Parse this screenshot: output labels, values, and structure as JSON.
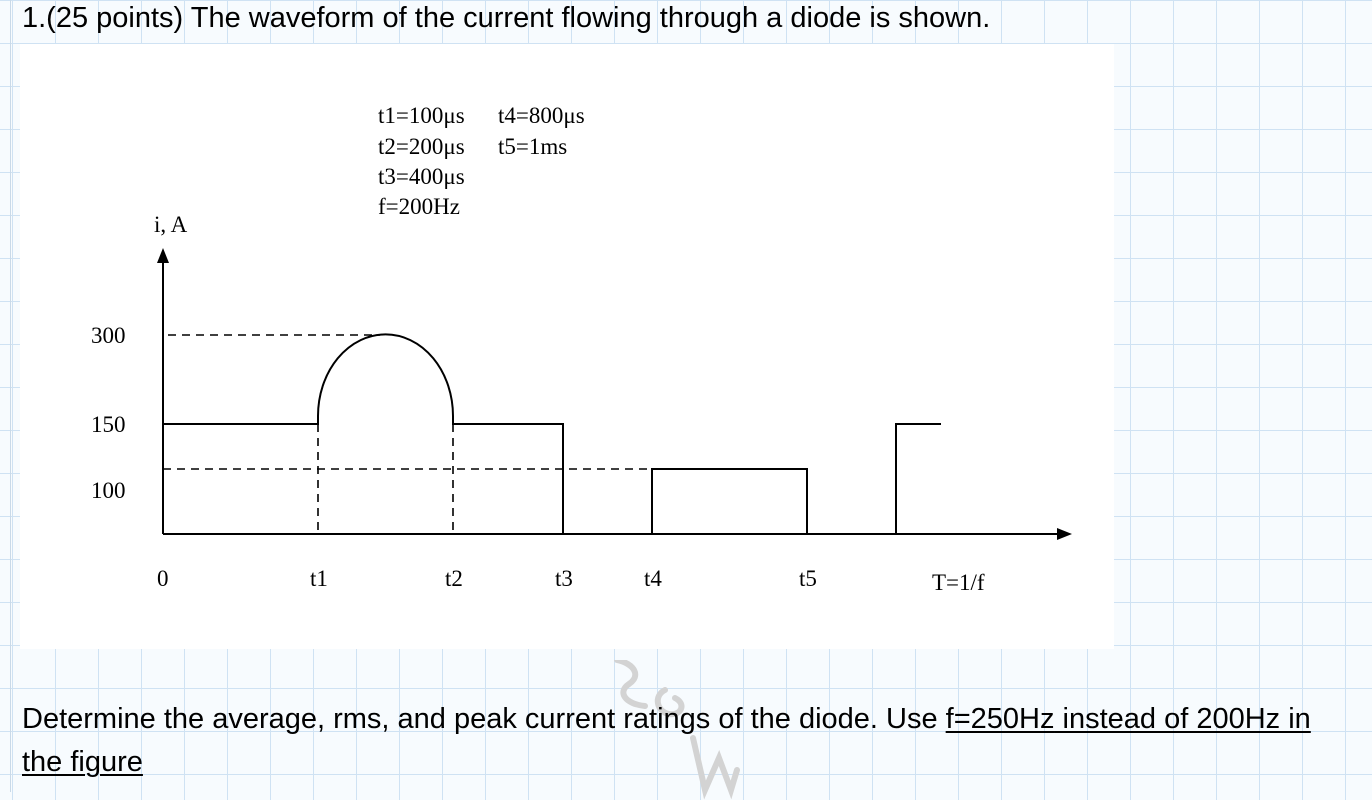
{
  "question": {
    "title": "1.(25 points) The waveform of the current flowing through a diode is shown.",
    "body_part1": "Determine the average, rms, and peak current ratings of the diode. Use ",
    "body_part2": "f=250Hz",
    "body_part3": " instead of 200Hz in the figure"
  },
  "figure": {
    "params": [
      "t1=100μs",
      "t2=200μs",
      "t3=400μs",
      "f=200Hz",
      "t4=800μs",
      "t5=1ms"
    ],
    "y_axis_label": "i, A",
    "y_levels": [
      "300",
      "150",
      "100"
    ],
    "x_labels": [
      "0",
      "t1",
      "t2",
      "t3",
      "t4",
      "t5",
      "T=1/f"
    ]
  },
  "colors": {
    "grid": "#cfe2f3",
    "ink": "#000000",
    "panel": "#ffffff"
  }
}
